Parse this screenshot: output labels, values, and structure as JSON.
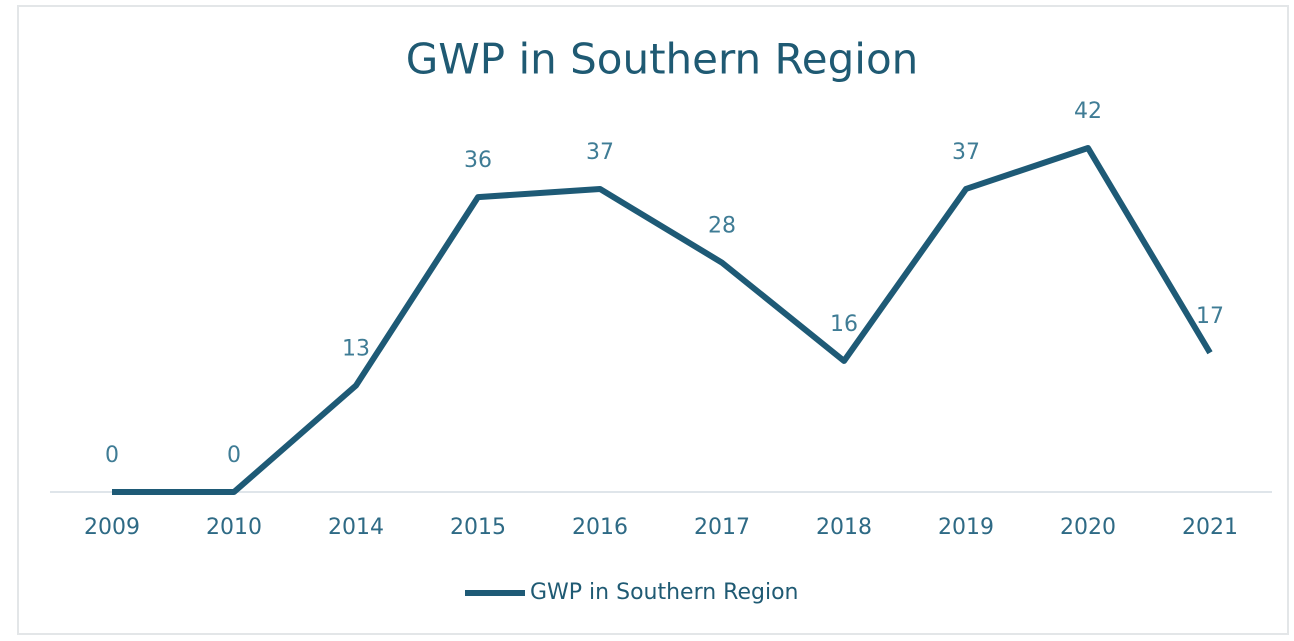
{
  "chart_data": {
    "type": "line",
    "title": "GWP in Southern Region",
    "categories": [
      "2009",
      "2010",
      "2014",
      "2015",
      "2016",
      "2017",
      "2018",
      "2019",
      "2020",
      "2021"
    ],
    "series": [
      {
        "name": "GWP in Southern Region",
        "color": "#1e5a76",
        "values": [
          0,
          0,
          13,
          36,
          37,
          28,
          16,
          37,
          42,
          17
        ]
      }
    ],
    "ylim": [
      0,
      42
    ],
    "data_labels": true,
    "legend": "bottom"
  }
}
